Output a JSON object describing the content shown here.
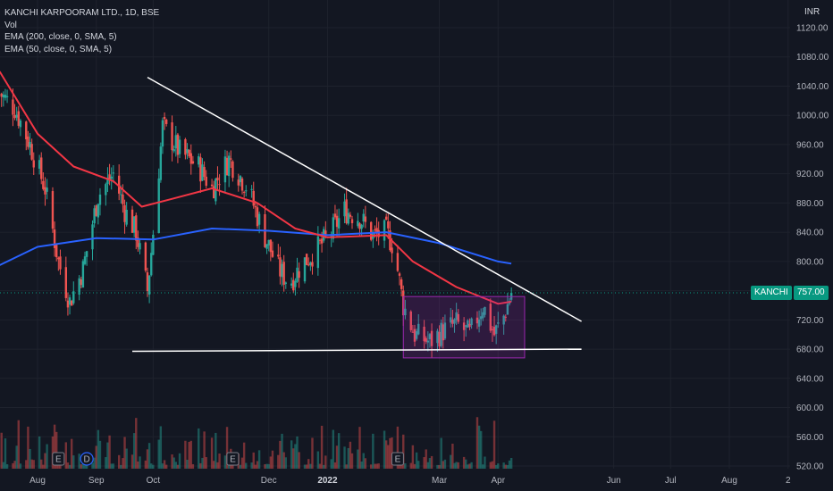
{
  "legend": {
    "title": "KANCHI KARPOORAM LTD., 1D, BSE",
    "vol": "Vol",
    "ema200": "EMA (200, close, 0, SMA, 5)",
    "ema50": "EMA (50, close, 0, SMA, 5)"
  },
  "currency": "INR",
  "badge": {
    "ticker": "KANCHI",
    "price": "757.00"
  },
  "chart_data": {
    "type": "candlestick",
    "y_ticks": [
      "1120.00",
      "1080.00",
      "1040.00",
      "1000.00",
      "960.00",
      "920.00",
      "880.00",
      "840.00",
      "800.00",
      "760.00",
      "720.00",
      "680.00",
      "640.00",
      "600.00",
      "560.00",
      "520.00"
    ],
    "y_tick_values": [
      1120,
      1080,
      1040,
      1000,
      960,
      920,
      880,
      840,
      800,
      760,
      720,
      680,
      640,
      600,
      560,
      520
    ],
    "x_ticks": [
      {
        "label": "Aug",
        "date": "2021-08-01"
      },
      {
        "label": "Sep",
        "date": "2021-09-01"
      },
      {
        "label": "Oct",
        "date": "2021-10-01"
      },
      {
        "label": "Dec",
        "date": "2021-12-01"
      },
      {
        "label": "2022",
        "date": "2022-01-01",
        "bold": true
      },
      {
        "label": "Mar",
        "date": "2022-03-01"
      },
      {
        "label": "Apr",
        "date": "2022-04-01"
      },
      {
        "label": "Jun",
        "date": "2022-06-01"
      },
      {
        "label": "Jul",
        "date": "2022-07-01"
      },
      {
        "label": "Aug",
        "date": "2022-08-01"
      },
      {
        "label": "2",
        "date": "2022-09-01"
      }
    ],
    "last_price": 757.0,
    "close_path": [
      {
        "date": "2021-07-12",
        "close": 1030
      },
      {
        "date": "2021-07-20",
        "close": 1010
      },
      {
        "date": "2021-07-28",
        "close": 960
      },
      {
        "date": "2021-08-05",
        "close": 900
      },
      {
        "date": "2021-08-12",
        "close": 800
      },
      {
        "date": "2021-08-18",
        "close": 745
      },
      {
        "date": "2021-08-25",
        "close": 790
      },
      {
        "date": "2021-09-02",
        "close": 890
      },
      {
        "date": "2021-09-10",
        "close": 920
      },
      {
        "date": "2021-09-16",
        "close": 870
      },
      {
        "date": "2021-09-22",
        "close": 840
      },
      {
        "date": "2021-09-28",
        "close": 760
      },
      {
        "date": "2021-10-01",
        "close": 840
      },
      {
        "date": "2021-10-06",
        "close": 985
      },
      {
        "date": "2021-10-15",
        "close": 950
      },
      {
        "date": "2021-10-25",
        "close": 930
      },
      {
        "date": "2021-11-01",
        "close": 900
      },
      {
        "date": "2021-11-10",
        "close": 940
      },
      {
        "date": "2021-11-20",
        "close": 900
      },
      {
        "date": "2021-11-28",
        "close": 840
      },
      {
        "date": "2021-12-06",
        "close": 790
      },
      {
        "date": "2021-12-12",
        "close": 770
      },
      {
        "date": "2021-12-18",
        "close": 795
      },
      {
        "date": "2021-12-26",
        "close": 815
      },
      {
        "date": "2022-01-03",
        "close": 840
      },
      {
        "date": "2022-01-10",
        "close": 870
      },
      {
        "date": "2022-01-18",
        "close": 860
      },
      {
        "date": "2022-01-25",
        "close": 835
      },
      {
        "date": "2022-02-01",
        "close": 840
      },
      {
        "date": "2022-02-05",
        "close": 820
      },
      {
        "date": "2022-02-10",
        "close": 740
      },
      {
        "date": "2022-02-16",
        "close": 700
      },
      {
        "date": "2022-02-24",
        "close": 690
      },
      {
        "date": "2022-03-03",
        "close": 705
      },
      {
        "date": "2022-03-10",
        "close": 715
      },
      {
        "date": "2022-03-17",
        "close": 700
      },
      {
        "date": "2022-03-24",
        "close": 740
      },
      {
        "date": "2022-03-30",
        "close": 700
      },
      {
        "date": "2022-04-04",
        "close": 725
      },
      {
        "date": "2022-04-08",
        "close": 757
      }
    ],
    "ema200": [
      {
        "date": "2021-07-12",
        "value": 795
      },
      {
        "date": "2021-08-01",
        "value": 820
      },
      {
        "date": "2021-09-01",
        "value": 832
      },
      {
        "date": "2021-10-01",
        "value": 830
      },
      {
        "date": "2021-11-01",
        "value": 845
      },
      {
        "date": "2021-12-01",
        "value": 842
      },
      {
        "date": "2022-01-01",
        "value": 836
      },
      {
        "date": "2022-02-01",
        "value": 840
      },
      {
        "date": "2022-03-01",
        "value": 825
      },
      {
        "date": "2022-04-01",
        "value": 800
      },
      {
        "date": "2022-04-08",
        "value": 797
      }
    ],
    "ema50": [
      {
        "date": "2021-07-12",
        "value": 1060
      },
      {
        "date": "2021-08-01",
        "value": 975
      },
      {
        "date": "2021-08-20",
        "value": 930
      },
      {
        "date": "2021-09-10",
        "value": 910
      },
      {
        "date": "2021-09-25",
        "value": 875
      },
      {
        "date": "2021-10-10",
        "value": 885
      },
      {
        "date": "2021-11-01",
        "value": 900
      },
      {
        "date": "2021-11-25",
        "value": 880
      },
      {
        "date": "2021-12-15",
        "value": 845
      },
      {
        "date": "2022-01-01",
        "value": 833
      },
      {
        "date": "2022-02-01",
        "value": 836
      },
      {
        "date": "2022-02-15",
        "value": 800
      },
      {
        "date": "2022-03-10",
        "value": 765
      },
      {
        "date": "2022-04-01",
        "value": 742
      },
      {
        "date": "2022-04-08",
        "value": 745
      }
    ],
    "trendlines": [
      {
        "name": "descending-resistance",
        "from": {
          "date": "2021-09-28",
          "price": 1052
        },
        "to": {
          "date": "2022-05-15",
          "price": 718
        }
      },
      {
        "name": "horizontal-support",
        "from": {
          "date": "2021-09-20",
          "price": 677
        },
        "to": {
          "date": "2022-05-15",
          "price": 680
        }
      }
    ],
    "range_box": {
      "from": {
        "date": "2022-02-10",
        "price": 752
      },
      "to": {
        "date": "2022-04-15",
        "price": 668
      }
    },
    "event_markers": [
      {
        "label": "E",
        "date": "2021-08-12"
      },
      {
        "label": "D",
        "date": "2021-08-27"
      },
      {
        "label": "E",
        "date": "2021-11-12"
      },
      {
        "label": "E",
        "date": "2022-02-07"
      }
    ]
  }
}
